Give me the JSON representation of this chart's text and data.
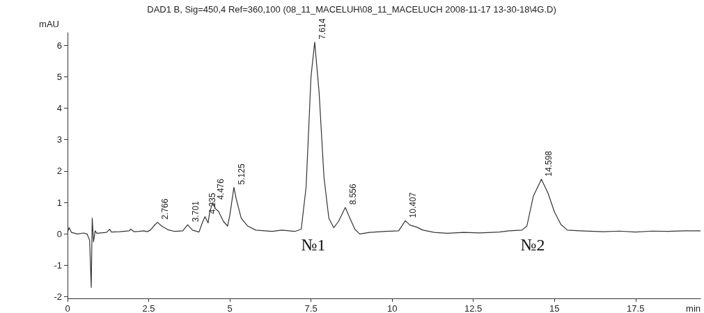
{
  "chart_data": {
    "type": "line",
    "title": "DAD1 B, Sig=450,4 Ref=360,100 (08_11_MACELUH\\08_11_MACELUCH 2008-11-17 13-30-18\\4G.D)",
    "xlabel": "min",
    "ylabel": "mAU",
    "x": [
      0,
      0.05,
      0.12,
      0.3,
      0.5,
      0.6,
      0.68,
      0.73,
      0.76,
      0.8,
      0.85,
      0.9,
      1.2,
      1.3,
      1.35,
      1.6,
      1.9,
      1.95,
      2.05,
      2.2,
      2.35,
      2.45,
      2.55,
      2.7,
      2.77,
      2.9,
      3.1,
      3.3,
      3.55,
      3.7,
      3.85,
      4.05,
      4.15,
      4.235,
      4.33,
      4.38,
      4.476,
      4.56,
      4.65,
      4.8,
      4.93,
      5.0,
      5.125,
      5.2,
      5.35,
      5.55,
      5.8,
      6.3,
      6.6,
      7.0,
      7.2,
      7.35,
      7.5,
      7.614,
      7.75,
      7.9,
      8.05,
      8.2,
      8.35,
      8.556,
      8.7,
      8.85,
      9.0,
      9.3,
      9.8,
      10.2,
      10.407,
      10.55,
      10.75,
      10.95,
      11.3,
      11.7,
      12.2,
      12.7,
      13.3,
      13.6,
      14.0,
      14.15,
      14.35,
      14.598,
      14.8,
      15.0,
      15.2,
      15.4,
      15.8,
      16.5,
      17.0,
      17.5,
      18.0,
      18.5,
      19.0,
      19.5
    ],
    "series": [
      {
        "color": "#333333",
        "values": [
          0.05,
          0.2,
          0.05,
          0.0,
          0.03,
          0.0,
          -0.2,
          -1.7,
          0.5,
          -0.25,
          0.1,
          0.02,
          0.05,
          0.15,
          0.06,
          0.07,
          0.1,
          0.15,
          0.07,
          0.08,
          0.1,
          0.07,
          0.12,
          0.3,
          0.37,
          0.25,
          0.13,
          0.08,
          0.1,
          0.29,
          0.12,
          0.06,
          0.35,
          0.55,
          0.35,
          0.7,
          1.0,
          0.8,
          0.72,
          0.4,
          0.25,
          0.6,
          1.48,
          1.1,
          0.5,
          0.25,
          0.12,
          0.08,
          0.12,
          0.08,
          0.15,
          1.5,
          5.0,
          6.1,
          4.5,
          1.8,
          0.5,
          0.2,
          0.4,
          0.84,
          0.5,
          0.15,
          0.0,
          0.05,
          0.08,
          0.1,
          0.42,
          0.28,
          0.22,
          0.12,
          0.05,
          0.02,
          0.05,
          0.03,
          0.06,
          0.1,
          0.12,
          0.25,
          1.2,
          1.74,
          1.3,
          0.7,
          0.3,
          0.12,
          0.1,
          0.07,
          0.09,
          0.06,
          0.09,
          0.08,
          0.1,
          0.1
        ]
      }
    ],
    "xlim": [
      0,
      19.5
    ],
    "xticks": [
      0,
      2.5,
      5,
      7.5,
      10,
      12.5,
      15,
      17.5
    ],
    "ylim": [
      -2.05,
      6.4
    ],
    "yticks": [
      -2,
      -1,
      0,
      1,
      2,
      3,
      4,
      5,
      6
    ],
    "marker": "none",
    "line_style": "solid",
    "annotations": [
      {
        "text": "2.766",
        "x": 2.766,
        "y": 0.37
      },
      {
        "text": "3.701",
        "x": 3.701,
        "y": 0.29
      },
      {
        "text": "4.235",
        "x": 4.235,
        "y": 0.55
      },
      {
        "text": "4.476",
        "x": 4.476,
        "y": 1.0
      },
      {
        "text": "5.125",
        "x": 5.125,
        "y": 1.48
      },
      {
        "text": "7.614",
        "x": 7.614,
        "y": 6.1
      },
      {
        "text": "8.556",
        "x": 8.556,
        "y": 0.84
      },
      {
        "text": "10.407",
        "x": 10.407,
        "y": 0.42
      },
      {
        "text": "14.598",
        "x": 14.598,
        "y": 1.74
      },
      "№1",
      "№2"
    ]
  }
}
